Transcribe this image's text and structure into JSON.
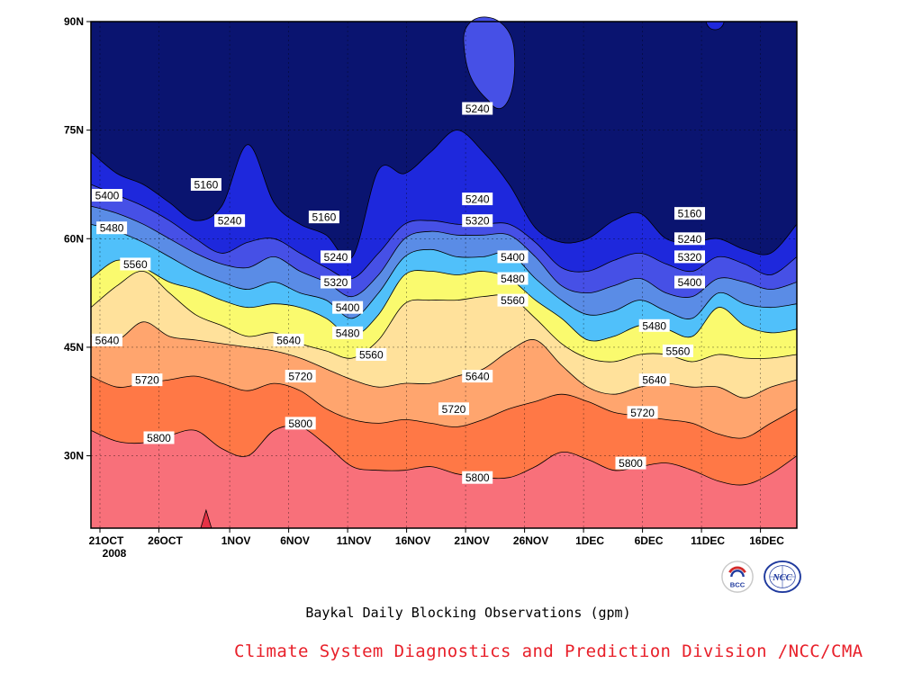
{
  "chart_data": {
    "type": "heatmap",
    "title": "",
    "xlabel": "",
    "ylabel": "",
    "x_ticks": [
      "21OCT",
      "26OCT",
      "1NOV",
      "6NOV",
      "11NOV",
      "16NOV",
      "21NOV",
      "26NOV",
      "1DEC",
      "6DEC",
      "11DEC",
      "16DEC"
    ],
    "x_year": "2008",
    "y_ticks": [
      "30N",
      "45N",
      "60N",
      "75N",
      "90N"
    ],
    "y_range": [
      20,
      90
    ],
    "grid": true,
    "levels": [
      5160,
      5240,
      5320,
      5400,
      5480,
      5560,
      5640,
      5720,
      5800
    ],
    "colors": [
      "#0a1470",
      "#1e28dc",
      "#4650e6",
      "#5a8ce6",
      "#50c0fa",
      "#fafa6e",
      "#ffe19b",
      "#ffa56e",
      "#ff7846",
      "#f8707a",
      "#e63246"
    ],
    "contour_lines": [
      {
        "level": 5800,
        "lat_by_x": [
          33.5,
          32.0,
          31.8,
          32.8,
          33.5,
          31.0,
          30.0,
          33.5,
          34.0,
          31.5,
          28.5,
          28.0,
          28.0,
          28.5,
          27.5,
          27.0,
          27.0,
          28.5,
          30.5,
          29.5,
          28.0,
          28.5,
          29.0,
          28.0,
          26.5,
          26.0,
          27.5,
          30.0
        ]
      },
      {
        "level": 5720,
        "lat_by_x": [
          41.0,
          39.5,
          40.0,
          40.5,
          41.0,
          40.0,
          39.0,
          40.0,
          39.0,
          36.5,
          35.0,
          34.5,
          35.0,
          34.5,
          34.0,
          35.0,
          36.5,
          37.5,
          38.5,
          37.5,
          36.0,
          35.5,
          35.0,
          34.5,
          33.0,
          32.5,
          34.5,
          36.5
        ]
      },
      {
        "level": 5640,
        "lat_by_x": [
          46.5,
          46.0,
          48.5,
          46.5,
          46.0,
          45.5,
          45.0,
          44.5,
          43.5,
          42.0,
          40.5,
          39.5,
          40.0,
          40.0,
          41.0,
          42.0,
          44.5,
          46.0,
          42.5,
          39.5,
          38.5,
          39.5,
          40.0,
          39.5,
          39.5,
          38.0,
          39.5,
          40.5
        ]
      },
      {
        "level": 5560,
        "lat_by_x": [
          50.5,
          53.5,
          55.5,
          52.5,
          49.5,
          48.0,
          46.5,
          47.0,
          45.5,
          44.5,
          43.5,
          46.0,
          51.0,
          51.5,
          51.5,
          52.0,
          52.0,
          49.0,
          45.5,
          43.5,
          43.0,
          44.0,
          44.0,
          43.0,
          44.0,
          43.5,
          43.5,
          44.0
        ]
      },
      {
        "level": 5480,
        "lat_by_x": [
          54.5,
          57.0,
          56.0,
          54.0,
          53.0,
          51.5,
          50.5,
          51.0,
          50.5,
          49.0,
          46.5,
          49.5,
          55.0,
          55.5,
          55.0,
          55.5,
          54.5,
          51.5,
          49.0,
          46.0,
          46.5,
          48.0,
          47.5,
          46.5,
          50.5,
          48.0,
          47.0,
          47.5
        ]
      },
      {
        "level": 5400,
        "lat_by_x": [
          62.0,
          61.0,
          59.5,
          57.5,
          55.5,
          54.0,
          53.0,
          54.0,
          52.5,
          51.5,
          49.0,
          52.5,
          57.5,
          58.5,
          57.5,
          57.5,
          58.0,
          54.5,
          51.5,
          49.5,
          50.0,
          51.5,
          50.0,
          49.0,
          52.5,
          51.0,
          50.5,
          51.0
        ]
      },
      {
        "level": 5320,
        "lat_by_x": [
          64.5,
          63.5,
          62.0,
          60.0,
          58.0,
          56.5,
          56.0,
          57.5,
          55.5,
          54.0,
          52.0,
          55.0,
          60.0,
          61.0,
          60.5,
          60.5,
          60.5,
          57.5,
          53.5,
          52.5,
          53.5,
          54.5,
          52.5,
          52.0,
          54.5,
          54.0,
          53.0,
          54.0
        ]
      },
      {
        "level": 5240,
        "lat_by_x": [
          67.5,
          66.0,
          64.5,
          62.5,
          60.0,
          58.0,
          59.5,
          60.0,
          58.0,
          56.0,
          54.5,
          58.0,
          62.0,
          62.5,
          62.0,
          62.0,
          62.0,
          59.5,
          56.0,
          55.5,
          57.0,
          58.0,
          56.5,
          55.5,
          57.5,
          56.5,
          55.0,
          57.5
        ]
      },
      {
        "level": 5160,
        "lat_by_x": [
          72.0,
          69.0,
          67.5,
          65.0,
          62.5,
          64.5,
          73.0,
          65.0,
          62.0,
          60.5,
          57.5,
          69.5,
          69.0,
          72.0,
          75.0,
          72.0,
          67.5,
          61.5,
          59.5,
          60.0,
          62.5,
          63.5,
          60.0,
          59.5,
          60.0,
          58.5,
          58.0,
          62.0
        ]
      }
    ],
    "annotations": [
      {
        "text": "5160",
        "date": "30OCT",
        "lat": 67.5
      },
      {
        "text": "5240",
        "date": "1NOV",
        "lat": 62.5
      },
      {
        "text": "5400",
        "date": "21OCT",
        "lat": 66.0
      },
      {
        "text": "5480",
        "date": "22OCT",
        "lat": 61.5
      },
      {
        "text": "5560",
        "date": "24OCT",
        "lat": 56.5
      },
      {
        "text": "5640",
        "date": "21OCT",
        "lat": 46.0
      },
      {
        "text": "5720",
        "date": "25OCT",
        "lat": 40.5
      },
      {
        "text": "5800",
        "date": "26OCT",
        "lat": 32.5
      },
      {
        "text": "5160",
        "date": "9NOV",
        "lat": 63.0
      },
      {
        "text": "5240",
        "date": "10NOV",
        "lat": 57.5
      },
      {
        "text": "5320",
        "date": "10NOV",
        "lat": 54.0
      },
      {
        "text": "5400",
        "date": "11NOV",
        "lat": 50.5
      },
      {
        "text": "5480",
        "date": "11NOV",
        "lat": 47.0
      },
      {
        "text": "5560",
        "date": "13NOV",
        "lat": 44.0
      },
      {
        "text": "5640",
        "date": "6NOV",
        "lat": 46.0
      },
      {
        "text": "5720",
        "date": "7NOV",
        "lat": 41.0
      },
      {
        "text": "5800",
        "date": "7NOV",
        "lat": 34.5
      },
      {
        "text": "5240",
        "date": "22NOV",
        "lat": 78.0
      },
      {
        "text": "5240",
        "date": "22NOV",
        "lat": 65.5
      },
      {
        "text": "5320",
        "date": "22NOV",
        "lat": 62.5
      },
      {
        "text": "5400",
        "date": "25NOV",
        "lat": 57.5
      },
      {
        "text": "5480",
        "date": "25NOV",
        "lat": 54.5
      },
      {
        "text": "5560",
        "date": "25NOV",
        "lat": 51.5
      },
      {
        "text": "5640",
        "date": "22NOV",
        "lat": 41.0
      },
      {
        "text": "5720",
        "date": "20NOV",
        "lat": 36.5
      },
      {
        "text": "5800",
        "date": "22NOV",
        "lat": 27.0
      },
      {
        "text": "5160",
        "date": "10DEC",
        "lat": 63.5
      },
      {
        "text": "5240",
        "date": "10DEC",
        "lat": 60.0
      },
      {
        "text": "5320",
        "date": "10DEC",
        "lat": 57.5
      },
      {
        "text": "5400",
        "date": "10DEC",
        "lat": 54.0
      },
      {
        "text": "5480",
        "date": "7DEC",
        "lat": 48.0
      },
      {
        "text": "5560",
        "date": "9DEC",
        "lat": 44.5
      },
      {
        "text": "5640",
        "date": "7DEC",
        "lat": 40.5
      },
      {
        "text": "5720",
        "date": "6DEC",
        "lat": 36.0
      },
      {
        "text": "5800",
        "date": "5DEC",
        "lat": 29.0
      }
    ]
  },
  "caption": "Baykal Daily Blocking Observations (gpm)",
  "credit": "Climate System Diagnostics and Prediction Division /NCC/CMA",
  "logos": [
    {
      "name": "bcc-logo",
      "text": "BCC",
      "color": "#d32b2b"
    },
    {
      "name": "ncc-logo",
      "text": "NCC",
      "color": "#1f3a9e"
    }
  ]
}
